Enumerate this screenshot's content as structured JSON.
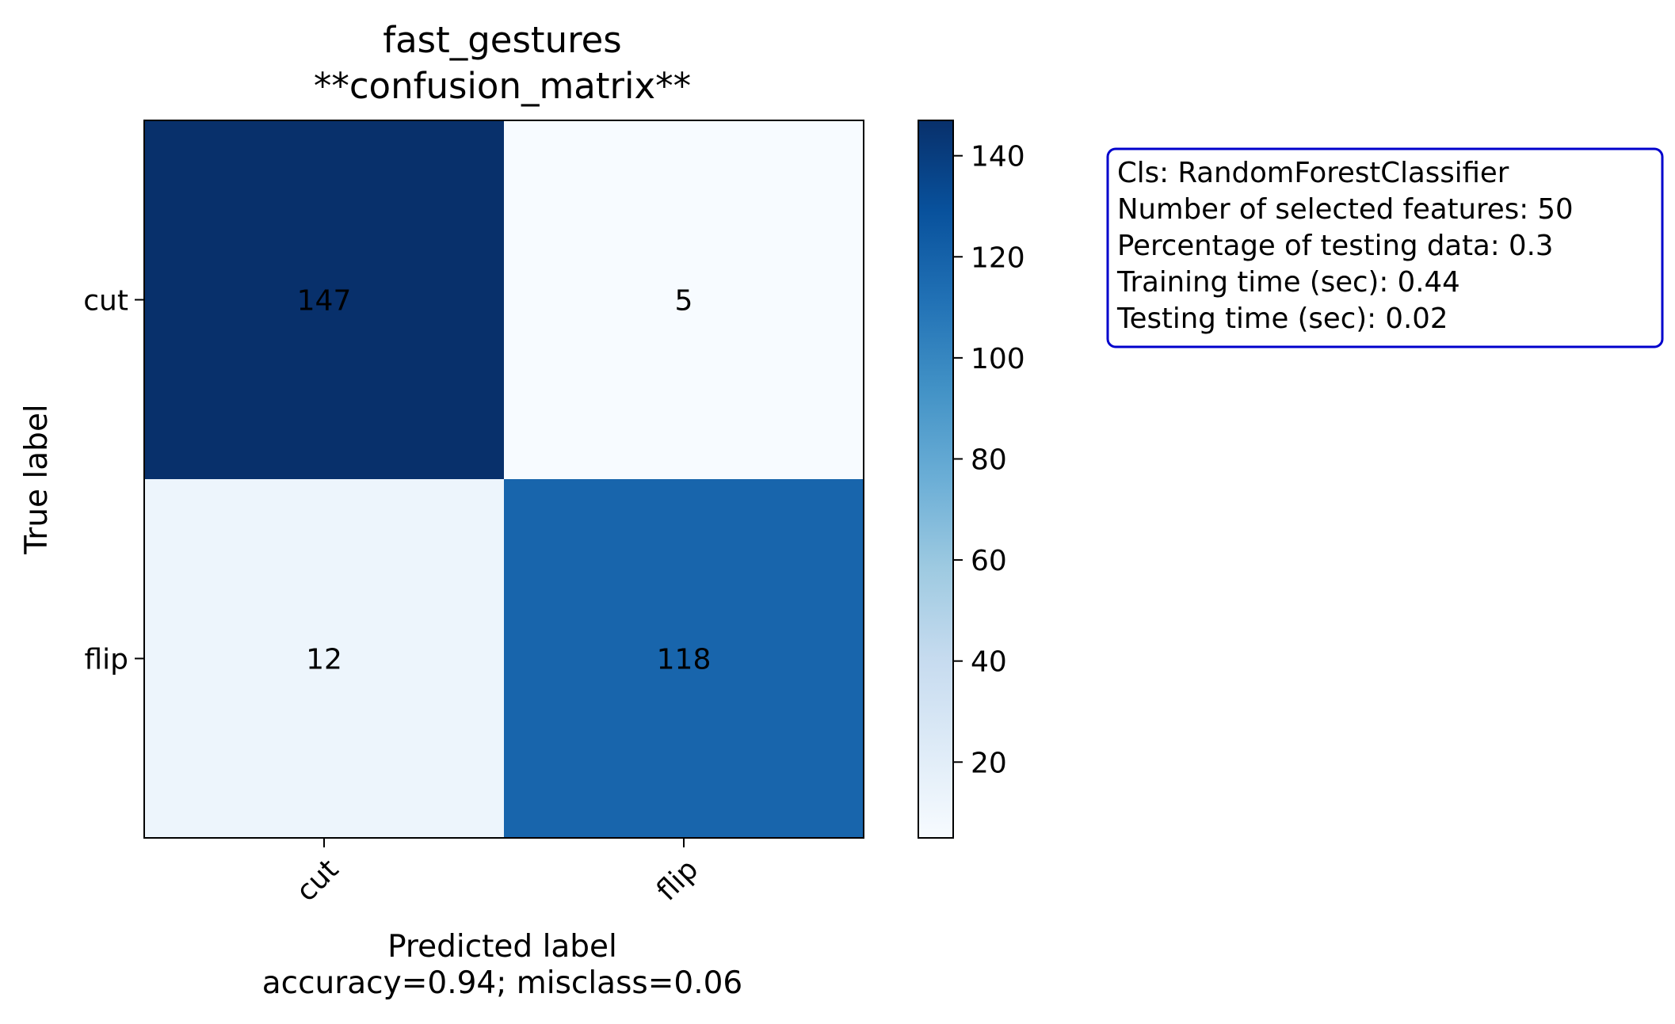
{
  "chart_data": {
    "type": "heatmap",
    "title": "fast_gestures",
    "subtitle": "**confusion_matrix**",
    "xlabel": "Predicted label",
    "xlabel_sub": "accuracy=0.94; misclass=0.06",
    "ylabel": "True label",
    "x_categories": [
      "cut",
      "flip"
    ],
    "y_categories": [
      "cut",
      "flip"
    ],
    "values": [
      [
        147,
        5
      ],
      [
        12,
        118
      ]
    ],
    "colormap": "Blues",
    "vmin": 5,
    "vmax": 147,
    "colorbar_ticks": [
      20,
      40,
      60,
      80,
      100,
      120,
      140
    ],
    "grid": false
  },
  "info_box": {
    "lines": [
      "Cls: RandomForestClassifier",
      "Number of selected features: 50",
      "Percentage of testing data: 0.3",
      "Training time (sec): 0.44",
      "Testing time (sec): 0.02"
    ],
    "border_color": "#0000cc"
  }
}
